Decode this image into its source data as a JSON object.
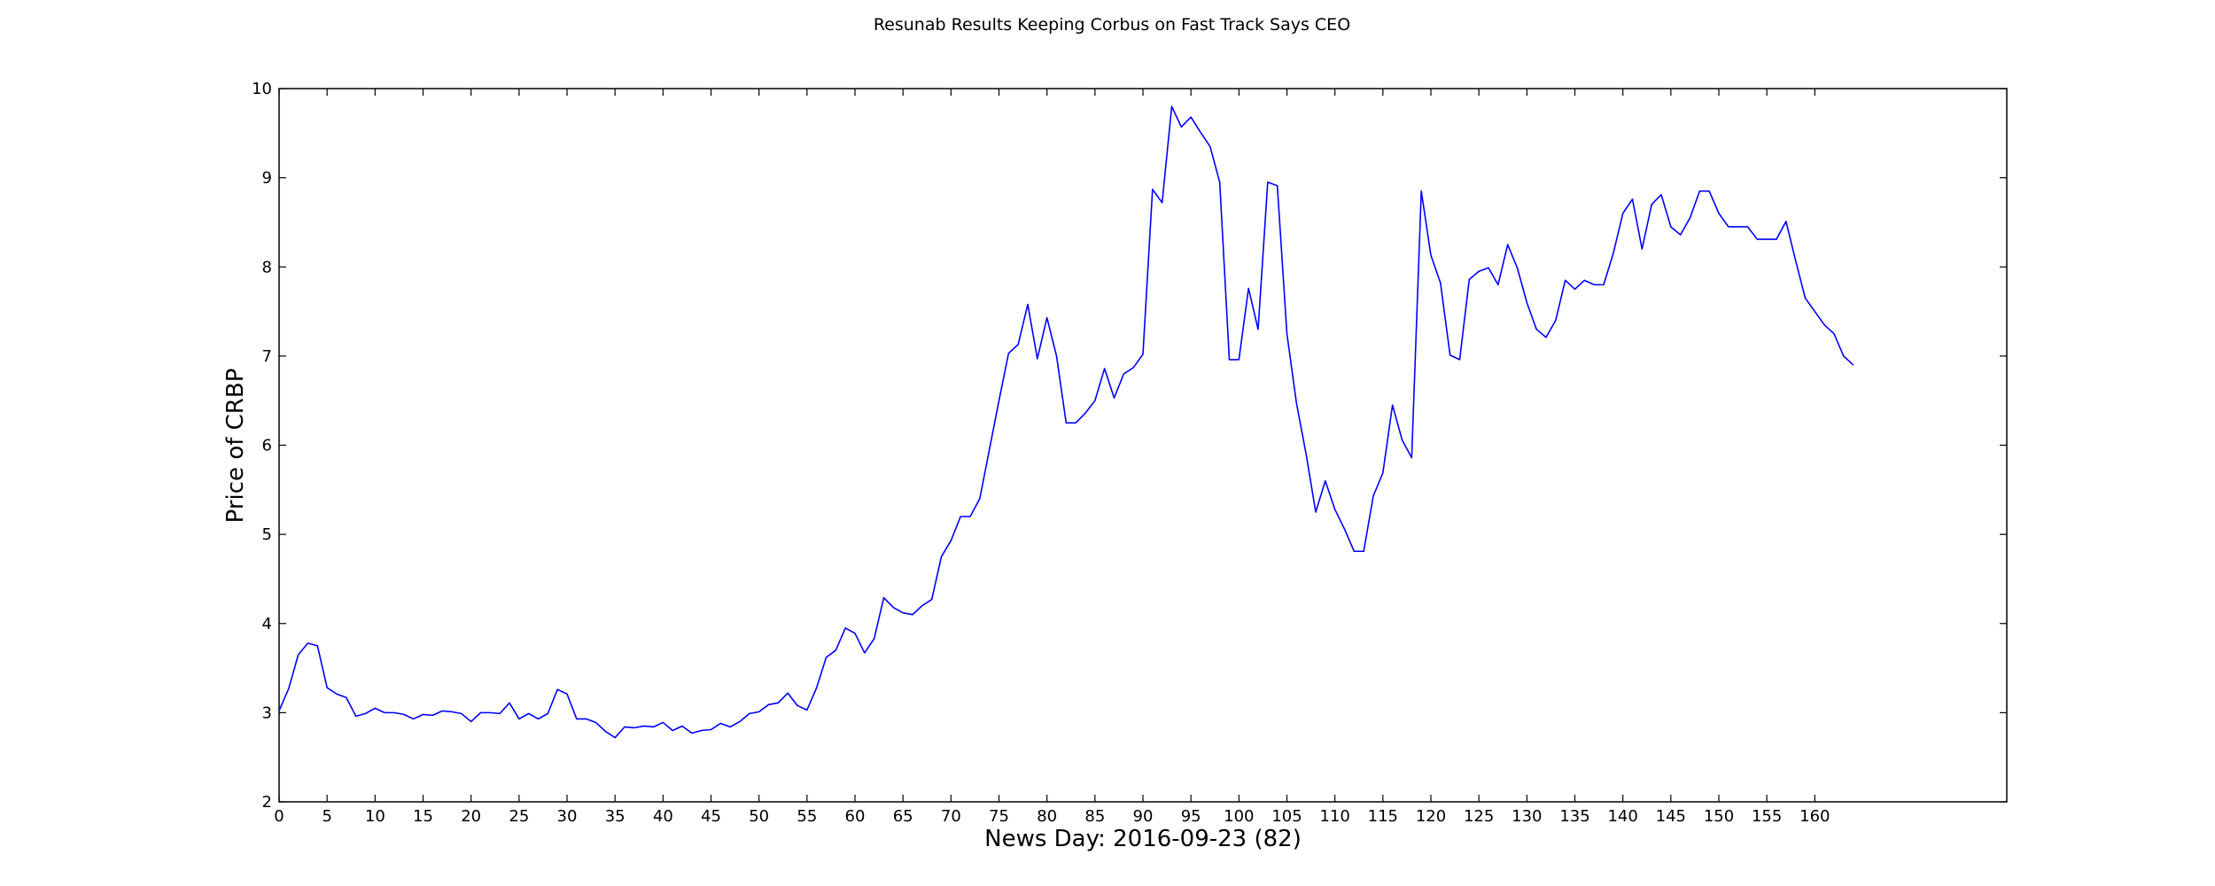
{
  "chart_data": {
    "type": "line",
    "title": "Resunab Results Keeping Corbus on Fast Track Says CEO",
    "xlabel": "News Day: 2016-09-23 (82)",
    "ylabel": "Price of CRBP",
    "xlim": [
      0,
      180
    ],
    "ylim": [
      2,
      10
    ],
    "x_ticks": [
      0,
      5,
      10,
      15,
      20,
      25,
      30,
      35,
      40,
      45,
      50,
      55,
      60,
      65,
      70,
      75,
      80,
      85,
      90,
      95,
      100,
      105,
      110,
      115,
      120,
      125,
      130,
      135,
      140,
      145,
      150,
      155,
      160
    ],
    "y_ticks": [
      2,
      3,
      4,
      5,
      6,
      7,
      8,
      9,
      10
    ],
    "grid": false,
    "series": [
      {
        "color": "#0000ff",
        "x_start": 0,
        "values": [
          3.02,
          3.27,
          3.65,
          3.78,
          3.75,
          3.28,
          3.21,
          3.17,
          2.96,
          2.99,
          3.05,
          3.0,
          3.0,
          2.98,
          2.93,
          2.98,
          2.97,
          3.02,
          3.01,
          2.99,
          2.9,
          3.0,
          3.0,
          2.99,
          3.11,
          2.93,
          2.99,
          2.93,
          2.99,
          3.26,
          3.21,
          2.93,
          2.93,
          2.89,
          2.79,
          2.72,
          2.84,
          2.83,
          2.85,
          2.84,
          2.89,
          2.8,
          2.85,
          2.77,
          2.8,
          2.81,
          2.88,
          2.84,
          2.9,
          2.99,
          3.01,
          3.09,
          3.11,
          3.22,
          3.08,
          3.03,
          3.28,
          3.62,
          3.7,
          3.95,
          3.89,
          3.67,
          3.83,
          4.29,
          4.18,
          4.12,
          4.1,
          4.2,
          4.27,
          4.75,
          4.93,
          5.2,
          5.2,
          5.4,
          5.95,
          6.5,
          7.03,
          7.13,
          7.58,
          6.97,
          7.43,
          7.0,
          6.25,
          6.25,
          6.36,
          6.5,
          6.86,
          6.53,
          6.8,
          6.87,
          7.02,
          8.87,
          8.72,
          9.8,
          9.57,
          9.68,
          9.51,
          9.35,
          8.95,
          6.96,
          6.96,
          7.76,
          7.3,
          8.95,
          8.91,
          7.25,
          6.47,
          5.9,
          5.25,
          5.6,
          5.28,
          5.06,
          4.81,
          4.81,
          5.43,
          5.69,
          6.45,
          6.06,
          5.86,
          8.85,
          8.13,
          7.82,
          7.01,
          6.96,
          7.86,
          7.95,
          7.99,
          7.8,
          8.25,
          7.99,
          7.6,
          7.3,
          7.21,
          7.4,
          7.85,
          7.75,
          7.85,
          7.8,
          7.8,
          8.15,
          8.6,
          8.76,
          8.2,
          8.7,
          8.81,
          8.45,
          8.36,
          8.55,
          8.85,
          8.85,
          8.6,
          8.45,
          8.45,
          8.45,
          8.31,
          8.31,
          8.31,
          8.51,
          8.07,
          7.65,
          7.5,
          7.35,
          7.25,
          7.0,
          6.9
        ]
      }
    ]
  }
}
